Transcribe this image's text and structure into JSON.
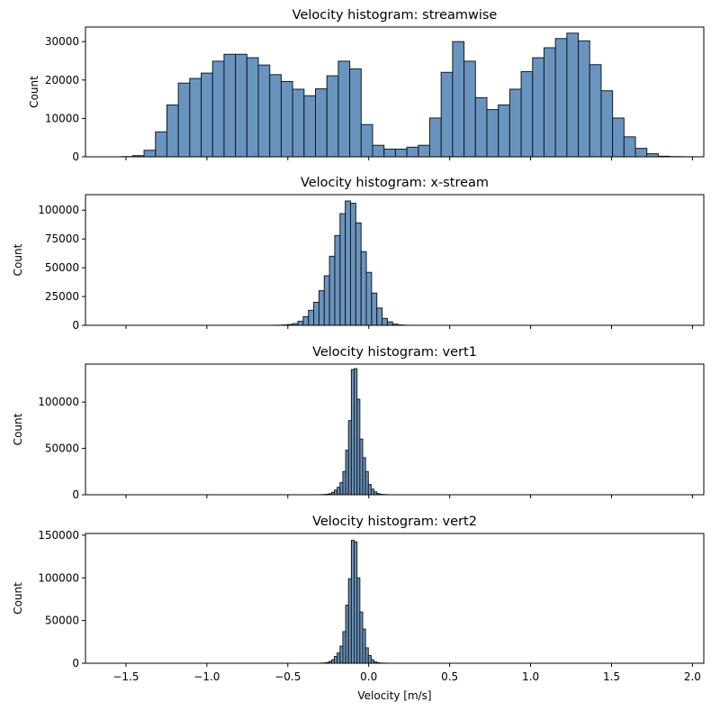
{
  "chart_data": [
    {
      "type": "bar",
      "title": "Velocity histogram: streamwise",
      "ylabel": "Count",
      "xlabel": "",
      "xlim": [
        -1.75,
        2.07
      ],
      "ylim": [
        0,
        33800
      ],
      "yticks": [
        0,
        10000,
        20000,
        30000
      ],
      "xticks": [
        -1.5,
        -1.0,
        -0.5,
        0.0,
        0.5,
        1.0,
        1.5,
        2.0
      ],
      "show_xticklabels": false,
      "bin_start": -1.6,
      "bin_width": 0.0706,
      "values": [
        0,
        50,
        300,
        1700,
        6500,
        13500,
        19200,
        20400,
        21800,
        24900,
        26700,
        26700,
        25800,
        23900,
        21400,
        19600,
        17600,
        15900,
        17700,
        21100,
        24900,
        22900,
        8400,
        3000,
        2000,
        2000,
        2500,
        3000,
        10100,
        22000,
        30000,
        24900,
        15400,
        12300,
        13500,
        17600,
        22200,
        25800,
        28400,
        30800,
        32200,
        30200,
        24000,
        17200,
        10100,
        5200,
        2200,
        800,
        150,
        50,
        20,
        0
      ]
    },
    {
      "type": "bar",
      "title": "Velocity histogram: x-stream",
      "ylabel": "Count",
      "xlabel": "",
      "xlim": [
        -1.75,
        2.07
      ],
      "ylim": [
        0,
        113500
      ],
      "yticks": [
        0,
        25000,
        50000,
        75000,
        100000
      ],
      "xticks": [
        -1.5,
        -1.0,
        -0.5,
        0.0,
        0.5,
        1.0,
        1.5,
        2.0
      ],
      "show_xticklabels": false,
      "bin_start": -0.6,
      "bin_width": 0.0325,
      "values": [
        50,
        100,
        300,
        700,
        1500,
        3500,
        7500,
        13000,
        20000,
        30000,
        43000,
        60000,
        78000,
        97000,
        108000,
        106000,
        89000,
        64000,
        46000,
        28000,
        15000,
        6000,
        3000,
        1000,
        300,
        100
      ]
    },
    {
      "type": "bar",
      "title": "Velocity histogram: vert1",
      "ylabel": "Count",
      "xlabel": "",
      "xlim": [
        -1.75,
        2.07
      ],
      "ylim": [
        0,
        141000
      ],
      "yticks": [
        0,
        50000,
        100000
      ],
      "xticks": [
        -1.5,
        -1.0,
        -0.5,
        0.0,
        0.5,
        1.0,
        1.5,
        2.0
      ],
      "show_xticklabels": false,
      "bin_start": -0.3,
      "bin_width": 0.0175,
      "values": [
        100,
        200,
        500,
        1000,
        2500,
        5000,
        8000,
        13000,
        25000,
        48000,
        80000,
        135000,
        136000,
        103000,
        60000,
        40000,
        25000,
        11000,
        6000,
        3000,
        1200,
        500,
        200,
        100
      ]
    },
    {
      "type": "bar",
      "title": "Velocity histogram: vert2",
      "ylabel": "Count",
      "xlabel": "Velocity [m/s]",
      "xlim": [
        -1.75,
        2.07
      ],
      "ylim": [
        0,
        152000
      ],
      "yticks": [
        0,
        50000,
        100000,
        150000
      ],
      "xticks": [
        -1.5,
        -1.0,
        -0.5,
        0.0,
        0.5,
        1.0,
        1.5,
        2.0
      ],
      "xticklabels": [
        "−1.5",
        "−1.0",
        "−0.5",
        "0.0",
        "0.5",
        "1.0",
        "1.5",
        "2.0"
      ],
      "show_xticklabels": true,
      "bin_start": -0.3,
      "bin_width": 0.0175,
      "values": [
        100,
        300,
        800,
        2000,
        4000,
        8000,
        12000,
        20000,
        37000,
        68000,
        99000,
        144000,
        142000,
        100000,
        60000,
        40000,
        18000,
        9000,
        4000,
        1500,
        600,
        200,
        100,
        50
      ]
    }
  ],
  "colors": {
    "bar_fill": "#4f81b5",
    "bar_fill_opacity": 0.85,
    "bar_edge": "#1a1a1a"
  }
}
